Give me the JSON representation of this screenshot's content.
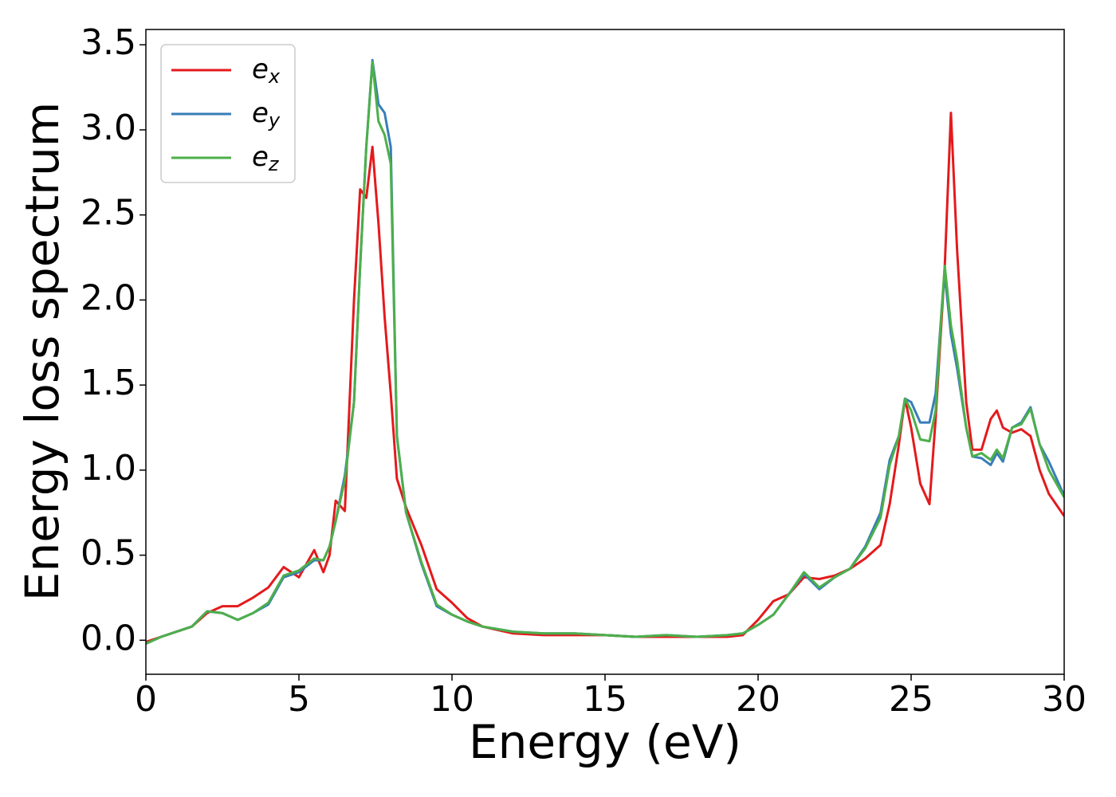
{
  "chart_data": {
    "type": "line",
    "xlabel": "Energy (eV)",
    "ylabel": "Energy loss spectrum",
    "xlim": [
      0,
      30
    ],
    "ylim": [
      -0.2,
      3.59
    ],
    "xticks": [
      0,
      5,
      10,
      15,
      20,
      25,
      30
    ],
    "yticks": [
      {
        "value": 0,
        "label": "0.0"
      },
      0.5,
      {
        "value": 1,
        "label": "1.0"
      },
      1.5,
      {
        "value": 2,
        "label": "2.0"
      },
      2.5,
      {
        "value": 3,
        "label": "3.0"
      },
      3.5
    ],
    "legend": "upper left",
    "x": [
      0,
      0.5,
      1,
      1.5,
      2,
      2.5,
      3,
      3.5,
      4,
      4.5,
      5,
      5.5,
      5.8,
      6,
      6.2,
      6.5,
      6.8,
      7,
      7.2,
      7.4,
      7.6,
      7.8,
      8,
      8.2,
      8.5,
      9,
      9.5,
      10,
      10.5,
      11,
      12,
      13,
      14,
      15,
      16,
      17,
      18,
      19,
      19.5,
      20,
      20.5,
      21,
      21.5,
      22,
      22.5,
      23,
      23.5,
      24,
      24.3,
      24.6,
      24.8,
      25,
      25.3,
      25.6,
      25.8,
      26,
      26.1,
      26.3,
      26.5,
      26.8,
      27,
      27.3,
      27.6,
      27.8,
      28,
      28.3,
      28.6,
      28.9,
      29.2,
      29.5,
      30
    ],
    "series": [
      {
        "name": "ex",
        "color": "#e41a1c",
        "values": [
          -0.01,
          0.02,
          0.05,
          0.08,
          0.16,
          0.2,
          0.2,
          0.25,
          0.31,
          0.43,
          0.37,
          0.53,
          0.4,
          0.5,
          0.82,
          0.76,
          2.0,
          2.65,
          2.6,
          2.9,
          2.45,
          1.9,
          1.45,
          0.95,
          0.78,
          0.56,
          0.3,
          0.22,
          0.13,
          0.08,
          0.04,
          0.03,
          0.03,
          0.03,
          0.02,
          0.02,
          0.02,
          0.02,
          0.03,
          0.12,
          0.23,
          0.27,
          0.37,
          0.36,
          0.38,
          0.42,
          0.48,
          0.56,
          0.8,
          1.15,
          1.42,
          1.25,
          0.92,
          0.8,
          1.3,
          1.9,
          2.2,
          3.1,
          2.3,
          1.4,
          1.12,
          1.12,
          1.3,
          1.35,
          1.25,
          1.22,
          1.24,
          1.2,
          1.0,
          0.86,
          0.73
        ]
      },
      {
        "name": "ey",
        "color": "#377eb8",
        "values": [
          -0.02,
          0.02,
          0.05,
          0.08,
          0.17,
          0.16,
          0.12,
          0.16,
          0.21,
          0.37,
          0.4,
          0.47,
          0.47,
          0.55,
          0.7,
          0.97,
          1.4,
          2.2,
          2.9,
          3.41,
          3.15,
          3.1,
          2.9,
          1.2,
          0.75,
          0.45,
          0.2,
          0.15,
          0.11,
          0.08,
          0.05,
          0.04,
          0.04,
          0.03,
          0.02,
          0.03,
          0.02,
          0.03,
          0.04,
          0.09,
          0.15,
          0.27,
          0.39,
          0.3,
          0.37,
          0.42,
          0.55,
          0.75,
          1.06,
          1.2,
          1.42,
          1.4,
          1.28,
          1.28,
          1.45,
          1.95,
          2.15,
          1.8,
          1.6,
          1.25,
          1.08,
          1.07,
          1.03,
          1.1,
          1.05,
          1.25,
          1.28,
          1.37,
          1.15,
          1.05,
          0.85
        ]
      },
      {
        "name": "ez",
        "color": "#4daf4a",
        "values": [
          -0.02,
          0.02,
          0.05,
          0.08,
          0.17,
          0.16,
          0.12,
          0.16,
          0.22,
          0.38,
          0.41,
          0.48,
          0.47,
          0.55,
          0.7,
          0.94,
          1.4,
          2.2,
          2.9,
          3.4,
          3.05,
          2.97,
          2.8,
          1.2,
          0.75,
          0.46,
          0.21,
          0.15,
          0.11,
          0.08,
          0.05,
          0.04,
          0.04,
          0.03,
          0.02,
          0.03,
          0.02,
          0.03,
          0.04,
          0.09,
          0.15,
          0.27,
          0.4,
          0.31,
          0.37,
          0.42,
          0.54,
          0.72,
          1.03,
          1.2,
          1.42,
          1.35,
          1.18,
          1.17,
          1.35,
          1.95,
          2.2,
          1.85,
          1.65,
          1.25,
          1.08,
          1.1,
          1.06,
          1.12,
          1.07,
          1.25,
          1.27,
          1.36,
          1.15,
          1.0,
          0.84
        ]
      }
    ]
  }
}
